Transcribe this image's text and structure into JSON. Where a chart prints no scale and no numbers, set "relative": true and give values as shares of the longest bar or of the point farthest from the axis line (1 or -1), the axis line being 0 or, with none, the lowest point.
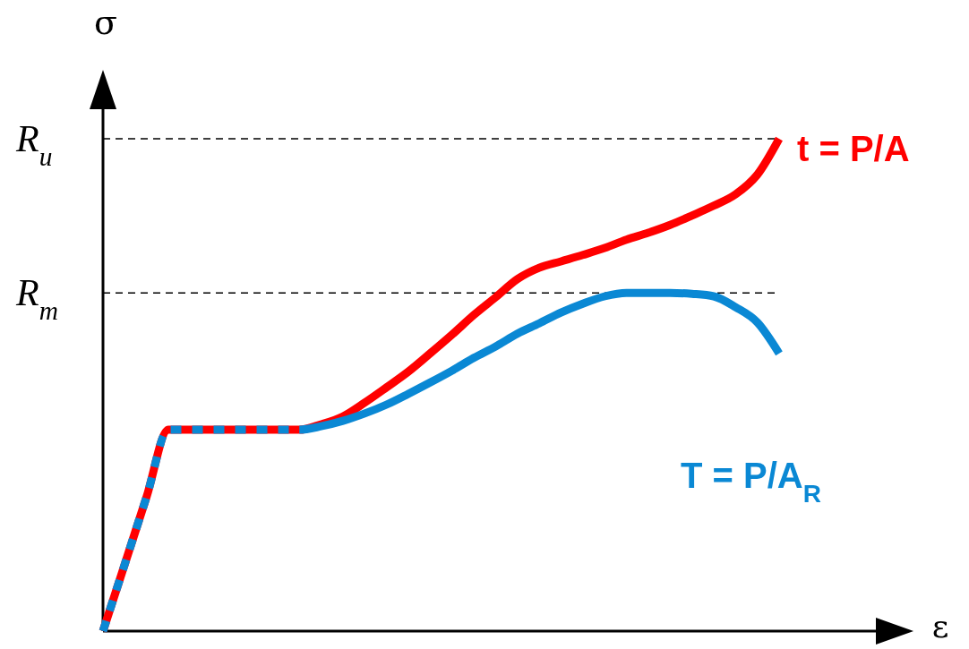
{
  "chart_data": {
    "type": "line",
    "relative": true,
    "xlabel": "ε",
    "ylabel": "σ",
    "categories": [
      null,
      null,
      null,
      null,
      null,
      null,
      null,
      null,
      null,
      null,
      null,
      null,
      null,
      null,
      null,
      null,
      null,
      null,
      null,
      null,
      null,
      null,
      null,
      null,
      null,
      null,
      null,
      null,
      null,
      null,
      null,
      null
    ],
    "series": [
      {
        "name": "T = P/A$_{R}$",
        "color": "#0a88d4",
        "values": [
          0,
          0.136,
          0.273,
          0.409,
          0.409,
          0.409,
          0.409,
          0.409,
          0.409,
          0.409,
          0.416,
          0.427,
          0.442,
          0.46,
          0.482,
          0.505,
          0.529,
          0.555,
          0.578,
          0.604,
          0.625,
          0.647,
          0.665,
          0.68,
          0.687,
          0.687,
          0.687,
          0.685,
          0.68,
          0.658,
          0.627,
          0.564
        ]
      },
      {
        "name": "t = P/A",
        "color": "#ff0000",
        "values": [
          0,
          0.136,
          0.273,
          0.409,
          0.409,
          0.409,
          0.409,
          0.409,
          0.409,
          0.409,
          0.42,
          0.436,
          0.464,
          0.495,
          0.527,
          0.564,
          0.602,
          0.642,
          0.678,
          0.715,
          0.738,
          0.751,
          0.764,
          0.778,
          0.795,
          0.809,
          0.825,
          0.844,
          0.864,
          0.887,
          0.927,
          1
        ]
      }
    ],
    "ref_lines": [
      {
        "axis": "y",
        "value": 1,
        "label": "R$_{u}$",
        "line_style": "dashed"
      },
      {
        "axis": "y",
        "value": 0.687,
        "label": "R$_{m}$",
        "line_style": "dashed"
      }
    ]
  }
}
